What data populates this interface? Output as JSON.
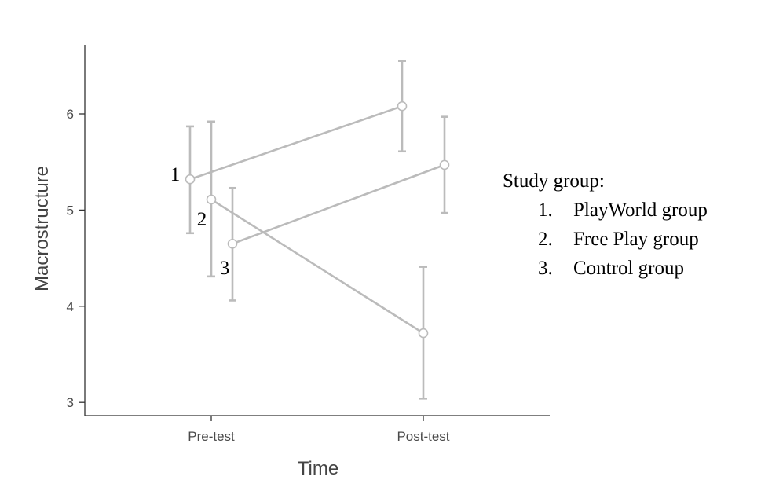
{
  "chart_data": {
    "type": "line",
    "xlabel": "Time",
    "ylabel": "Macrostructure",
    "categories": [
      "Pre-test",
      "Post-test"
    ],
    "ylim": [
      2.9,
      6.7
    ],
    "yticks": [
      "3",
      "4",
      "5",
      "6"
    ],
    "grid": false,
    "series": [
      {
        "name": "PlayWorld group",
        "label": "1",
        "values": [
          5.32,
          6.08
        ],
        "error_low": [
          4.76,
          5.61
        ],
        "error_high": [
          5.87,
          6.55
        ]
      },
      {
        "name": "Free Play group",
        "label": "2",
        "values": [
          5.11,
          3.72
        ],
        "error_low": [
          4.31,
          3.04
        ],
        "error_high": [
          5.92,
          4.41
        ]
      },
      {
        "name": "Control group",
        "label": "3",
        "values": [
          4.65,
          5.47
        ],
        "error_low": [
          4.06,
          4.97
        ],
        "error_high": [
          5.23,
          5.97
        ]
      }
    ],
    "line_color": "#bbbbbb",
    "legend": {
      "title": "Study group:",
      "placement": "right",
      "items": [
        {
          "num": "1.",
          "text": "PlayWorld group"
        },
        {
          "num": "2.",
          "text": "Free Play group"
        },
        {
          "num": "3.",
          "text": "Control group"
        }
      ]
    }
  }
}
